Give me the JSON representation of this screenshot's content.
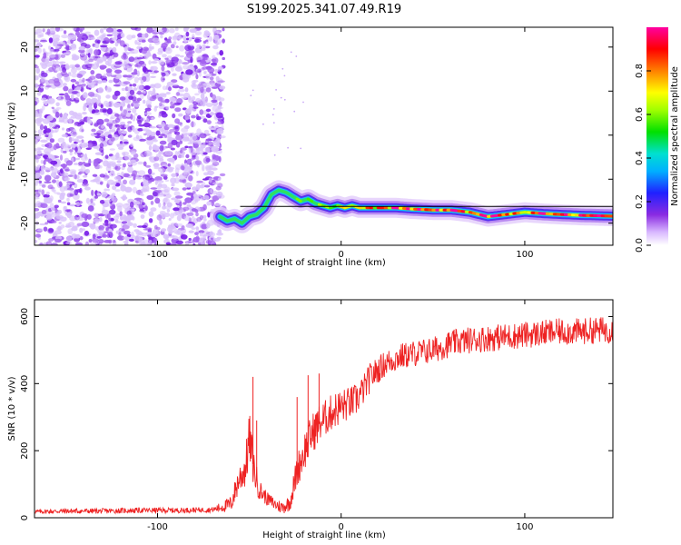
{
  "figure_title": "S199.2025.341.07.49.R19",
  "colors": {
    "snr_line": "#ee2222",
    "noise_speckle": "#8a2be2",
    "frame": "#000000"
  },
  "chart_data": [
    {
      "type": "heatmap",
      "title": "",
      "xlabel": "Height of straight line (km)",
      "ylabel": "Frequency (Hz)",
      "xlim": [
        -167,
        148
      ],
      "ylim": [
        -25,
        24.5
      ],
      "x_ticks": [
        -100,
        0,
        100
      ],
      "x_tick_labels": [
        "-100",
        "0",
        "100"
      ],
      "y_ticks": [
        -20,
        -10,
        0,
        10,
        20
      ],
      "y_tick_labels": [
        "-20",
        "-10",
        "0",
        "10",
        "20"
      ],
      "colorbar": {
        "label": "Normalized spectral amplitude",
        "range": [
          0,
          1
        ],
        "ticks": [
          0.0,
          0.2,
          0.4,
          0.6,
          0.8
        ],
        "tick_labels": [
          "0.0",
          "0.2",
          "0.4",
          "0.6",
          "0.8"
        ],
        "colormap": "rainbow (white-violet-blue-cyan-green-yellow-orange-red-magenta)"
      },
      "noise_region_x": [
        -167,
        -64
      ],
      "ridge_freq_track": {
        "x": [
          -66,
          -62,
          -58,
          -54,
          -50,
          -46,
          -42,
          -38,
          -34,
          -30,
          -26,
          -22,
          -18,
          -14,
          -10,
          -6,
          -2,
          2,
          6,
          10,
          20,
          30,
          40,
          50,
          60,
          70,
          80,
          90,
          100,
          110,
          120,
          130,
          140,
          148
        ],
        "y": [
          -18.5,
          -19.5,
          -19.0,
          -20.0,
          -18.5,
          -18.0,
          -16.5,
          -13.5,
          -12.5,
          -13.0,
          -14.0,
          -15.0,
          -14.5,
          -15.5,
          -16.0,
          -16.5,
          -16.0,
          -16.5,
          -16.0,
          -16.5,
          -16.5,
          -16.5,
          -16.8,
          -17.0,
          -17.0,
          -17.5,
          -18.5,
          -18.0,
          -17.5,
          -17.8,
          -18.0,
          -18.2,
          -18.3,
          -18.4
        ]
      },
      "ridge_amplitude": {
        "x": [
          -66,
          -50,
          -34,
          -22,
          -10,
          0,
          10,
          20,
          30,
          40,
          50,
          60,
          70,
          80,
          90,
          100,
          110,
          120,
          130,
          140,
          148
        ],
        "values": [
          0.3,
          0.35,
          0.45,
          0.5,
          0.6,
          0.65,
          0.7,
          0.75,
          0.9,
          0.8,
          0.85,
          0.95,
          0.8,
          0.9,
          0.75,
          0.85,
          0.95,
          0.8,
          0.9,
          0.85,
          0.8
        ]
      },
      "reference_line": {
        "x": [
          -55,
          148
        ],
        "y": -16.2
      }
    },
    {
      "type": "line",
      "title": "",
      "xlabel": "Height of straight line (km)",
      "ylabel": "SNR (10 * v/v)",
      "xlim": [
        -167,
        148
      ],
      "ylim": [
        0,
        650
      ],
      "x_ticks": [
        -100,
        0,
        100
      ],
      "x_tick_labels": [
        "-100",
        "0",
        "100"
      ],
      "y_ticks": [
        0,
        200,
        400,
        600
      ],
      "y_tick_labels": [
        "0",
        "200",
        "400",
        "600"
      ],
      "series": [
        {
          "name": "SNR",
          "x": [
            -167,
            -150,
            -130,
            -110,
            -90,
            -70,
            -60,
            -56,
            -52,
            -50,
            -48,
            -46,
            -44,
            -40,
            -36,
            -32,
            -28,
            -26,
            -24,
            -20,
            -16,
            -12,
            -8,
            -4,
            0,
            4,
            8,
            12,
            16,
            20,
            24,
            28,
            32,
            40,
            50,
            60,
            70,
            80,
            90,
            100,
            110,
            120,
            130,
            140,
            148
          ],
          "values": [
            18,
            20,
            20,
            22,
            22,
            24,
            40,
            110,
            150,
            240,
            160,
            110,
            80,
            55,
            40,
            30,
            45,
            90,
            140,
            200,
            250,
            280,
            300,
            320,
            330,
            340,
            350,
            380,
            420,
            440,
            460,
            470,
            480,
            490,
            500,
            520,
            530,
            535,
            540,
            545,
            550,
            555,
            555,
            560,
            560
          ]
        }
      ],
      "noise_amplitude": [
        6,
        8,
        8,
        8,
        8,
        8,
        25,
        45,
        60,
        80,
        60,
        45,
        30,
        20,
        20,
        20,
        25,
        40,
        50,
        60,
        60,
        60,
        55,
        55,
        55,
        50,
        50,
        45,
        45,
        40,
        40,
        40,
        40,
        40,
        40,
        40,
        40,
        40,
        40,
        40,
        40,
        40,
        40,
        40,
        40
      ],
      "spikes": {
        "x": [
          -48,
          -46,
          -24,
          -18,
          -12
        ],
        "values": [
          420,
          290,
          360,
          425,
          430
        ]
      }
    }
  ]
}
